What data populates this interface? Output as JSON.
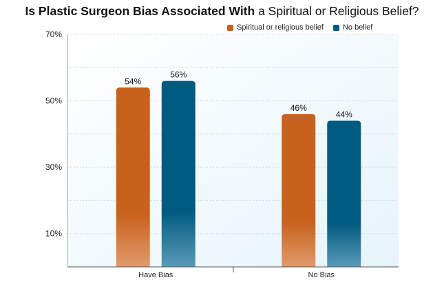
{
  "chart_data": {
    "type": "bar",
    "title_bold": "Is Plastic Surgeon Bias Associated With",
    "title_rest": " a Spiritual or Religious Belief?",
    "categories": [
      "Have Bias",
      "No Bias"
    ],
    "series": [
      {
        "name": "Spiritual or religious belief",
        "values": [
          54,
          46
        ],
        "labels": [
          "54%",
          "46%"
        ],
        "color": "#c8611b"
      },
      {
        "name": "No belief",
        "values": [
          56,
          44
        ],
        "labels": [
          "56%",
          "44%"
        ],
        "color": "#005a80"
      }
    ],
    "yticks": [
      10,
      30,
      50,
      70
    ],
    "ytick_labels": [
      "10%",
      "30%",
      "50%",
      "70%"
    ],
    "ylim": [
      0,
      70
    ],
    "grid": true,
    "legend_position": "top-right"
  }
}
